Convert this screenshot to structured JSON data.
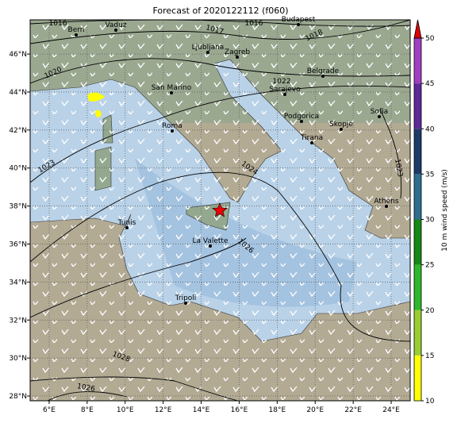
{
  "title": "Forecast of 2020122112 (f060)",
  "map": {
    "xlim": [
      5,
      25
    ],
    "ylim": [
      27.75,
      47.8
    ],
    "xticks": [
      {
        "value": 6,
        "label": "6°E"
      },
      {
        "value": 8,
        "label": "8°E"
      },
      {
        "value": 10,
        "label": "10°E"
      },
      {
        "value": 12,
        "label": "12°E"
      },
      {
        "value": 14,
        "label": "14°E"
      },
      {
        "value": 16,
        "label": "16°E"
      },
      {
        "value": 18,
        "label": "18°E"
      },
      {
        "value": 20,
        "label": "20°E"
      },
      {
        "value": 22,
        "label": "22°E"
      },
      {
        "value": 24,
        "label": "24°E"
      }
    ],
    "yticks": [
      {
        "value": 28,
        "label": "28°N"
      },
      {
        "value": 30,
        "label": "30°N"
      },
      {
        "value": 32,
        "label": "32°N"
      },
      {
        "value": 34,
        "label": "34°N"
      },
      {
        "value": 36,
        "label": "36°N"
      },
      {
        "value": 38,
        "label": "38°N"
      },
      {
        "value": 40,
        "label": "40°N"
      },
      {
        "value": 42,
        "label": "42°N"
      },
      {
        "value": 44,
        "label": "44°N"
      },
      {
        "value": 46,
        "label": "46°N"
      }
    ],
    "grid": true,
    "cities": [
      "Bern",
      "Vaduz",
      "Budapest",
      "Ljubljana",
      "Zagreb",
      "Belgrade",
      "San Marino",
      "Sarajevo",
      "Sofia",
      "Podgorica",
      "Skopje",
      "Roma",
      "Tirana",
      "Athens",
      "Tunis",
      "La Valette",
      "Tripoli"
    ],
    "isobar_labels": [
      1016,
      1017,
      1016,
      1018,
      1020,
      1022,
      1023,
      1024,
      1023,
      1026,
      1028,
      1026
    ]
  },
  "colorbar": {
    "label": "10 m wind speed (m/s)",
    "lim": [
      10,
      50
    ],
    "ticks": [
      10,
      15,
      20,
      25,
      30,
      35,
      40,
      45,
      50
    ],
    "colors": [
      "#ffff00",
      "#9acd32",
      "#2db82d",
      "#138a13",
      "#2e6f8e",
      "#1e3a68",
      "#5e2a96",
      "#a040c0"
    ],
    "extend_color": "#dd0000"
  }
}
